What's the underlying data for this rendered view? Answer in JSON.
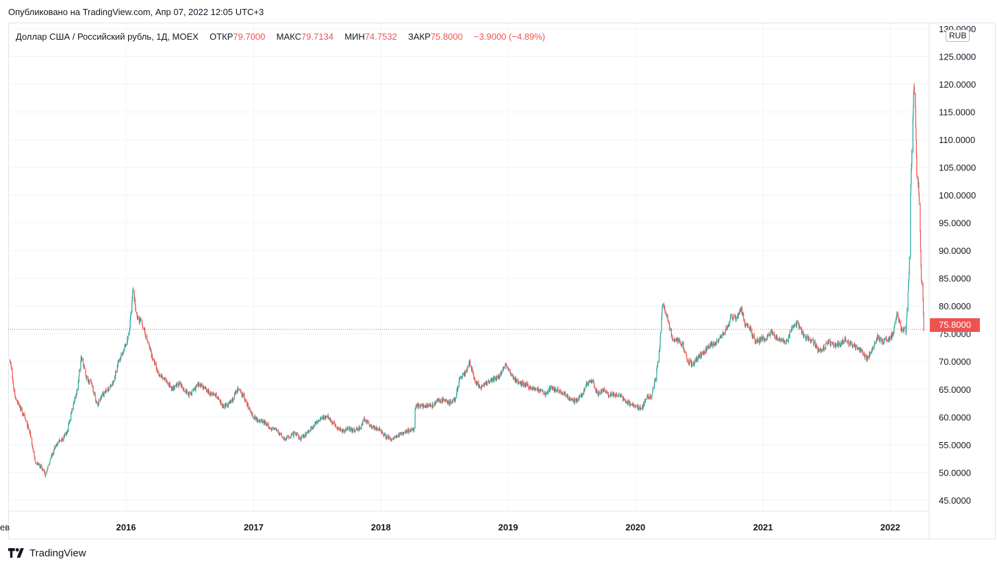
{
  "header": {
    "published_text": "Опубликовано на TradingView.com, Апр 07, 2022 12:05 UTC+3"
  },
  "legend": {
    "symbol": "Доллар США / Российский рубль, 1Д, MOEX",
    "open_label": "ОТКР",
    "open_value": "79.7000",
    "high_label": "МАКС",
    "high_value": "79.7134",
    "low_label": "МИН",
    "low_value": "74.7532",
    "close_label": "ЗАКР",
    "close_value": "75.8000",
    "change_value": "−3.9000 (−4.89%)"
  },
  "price_axis": {
    "currency": "RUB",
    "last_price_label": "75.8000"
  },
  "footer": {
    "brand": "TradingView"
  },
  "colors": {
    "up": "#26a69a",
    "down": "#ef5350",
    "grid": "#f0f3fa",
    "text": "#131722"
  },
  "chart_data": {
    "type": "candlestick",
    "title": "Доллар США / Российский рубль, 1Д, MOEX",
    "y_axis_ticks": [
      "45.0000",
      "50.0000",
      "55.0000",
      "60.0000",
      "65.0000",
      "70.0000",
      "75.0000",
      "80.0000",
      "85.0000",
      "90.0000",
      "95.0000",
      "100.0000",
      "105.0000",
      "110.0000",
      "115.0000",
      "120.0000",
      "125.0000",
      "130.0000"
    ],
    "x_axis_ticks": [
      "ев",
      "2016",
      "2017",
      "2018",
      "2019",
      "2020",
      "2021",
      "2022"
    ],
    "ylim": [
      43,
      131
    ],
    "last_close": 75.8,
    "series": [
      {
        "name": "USD/RUB",
        "points": [
          {
            "date": "2015-02-01",
            "close": 71
          },
          {
            "date": "2015-02-15",
            "close": 64
          },
          {
            "date": "2015-03-01",
            "close": 62
          },
          {
            "date": "2015-03-15",
            "close": 60
          },
          {
            "date": "2015-04-01",
            "close": 57
          },
          {
            "date": "2015-04-15",
            "close": 52
          },
          {
            "date": "2015-05-01",
            "close": 51
          },
          {
            "date": "2015-05-15",
            "close": 49.5
          },
          {
            "date": "2015-06-01",
            "close": 53
          },
          {
            "date": "2015-06-15",
            "close": 55
          },
          {
            "date": "2015-07-01",
            "close": 56
          },
          {
            "date": "2015-07-15",
            "close": 57
          },
          {
            "date": "2015-08-01",
            "close": 62
          },
          {
            "date": "2015-08-15",
            "close": 65
          },
          {
            "date": "2015-08-25",
            "close": 71
          },
          {
            "date": "2015-09-10",
            "close": 67
          },
          {
            "date": "2015-09-25",
            "close": 66
          },
          {
            "date": "2015-10-10",
            "close": 62
          },
          {
            "date": "2015-10-25",
            "close": 64
          },
          {
            "date": "2015-11-10",
            "close": 65
          },
          {
            "date": "2015-11-25",
            "close": 66
          },
          {
            "date": "2015-12-10",
            "close": 70
          },
          {
            "date": "2015-12-25",
            "close": 72
          },
          {
            "date": "2016-01-10",
            "close": 75
          },
          {
            "date": "2016-01-21",
            "close": 83
          },
          {
            "date": "2016-02-01",
            "close": 78
          },
          {
            "date": "2016-02-15",
            "close": 77
          },
          {
            "date": "2016-03-01",
            "close": 74
          },
          {
            "date": "2016-03-15",
            "close": 71
          },
          {
            "date": "2016-04-01",
            "close": 68
          },
          {
            "date": "2016-04-15",
            "close": 67
          },
          {
            "date": "2016-05-01",
            "close": 66
          },
          {
            "date": "2016-05-15",
            "close": 65
          },
          {
            "date": "2016-06-01",
            "close": 66
          },
          {
            "date": "2016-06-15",
            "close": 65
          },
          {
            "date": "2016-07-01",
            "close": 64
          },
          {
            "date": "2016-07-15",
            "close": 65
          },
          {
            "date": "2016-08-01",
            "close": 66
          },
          {
            "date": "2016-08-15",
            "close": 65
          },
          {
            "date": "2016-09-01",
            "close": 64
          },
          {
            "date": "2016-09-15",
            "close": 64
          },
          {
            "date": "2016-10-01",
            "close": 62
          },
          {
            "date": "2016-10-15",
            "close": 62
          },
          {
            "date": "2016-11-01",
            "close": 63
          },
          {
            "date": "2016-11-15",
            "close": 65
          },
          {
            "date": "2016-12-01",
            "close": 64
          },
          {
            "date": "2016-12-15",
            "close": 62
          },
          {
            "date": "2017-01-01",
            "close": 60
          },
          {
            "date": "2017-01-15",
            "close": 59.5
          },
          {
            "date": "2017-02-01",
            "close": 59
          },
          {
            "date": "2017-02-15",
            "close": 58
          },
          {
            "date": "2017-03-01",
            "close": 58
          },
          {
            "date": "2017-03-15",
            "close": 57
          },
          {
            "date": "2017-04-01",
            "close": 56
          },
          {
            "date": "2017-04-15",
            "close": 56.5
          },
          {
            "date": "2017-05-01",
            "close": 57
          },
          {
            "date": "2017-05-15",
            "close": 56
          },
          {
            "date": "2017-06-01",
            "close": 57
          },
          {
            "date": "2017-06-15",
            "close": 58
          },
          {
            "date": "2017-07-01",
            "close": 59
          },
          {
            "date": "2017-07-15",
            "close": 60
          },
          {
            "date": "2017-08-01",
            "close": 60
          },
          {
            "date": "2017-08-15",
            "close": 59
          },
          {
            "date": "2017-09-01",
            "close": 58
          },
          {
            "date": "2017-09-15",
            "close": 57.5
          },
          {
            "date": "2017-10-01",
            "close": 58
          },
          {
            "date": "2017-10-15",
            "close": 57.5
          },
          {
            "date": "2017-11-01",
            "close": 58
          },
          {
            "date": "2017-11-15",
            "close": 59.5
          },
          {
            "date": "2017-12-01",
            "close": 58.5
          },
          {
            "date": "2017-12-15",
            "close": 58
          },
          {
            "date": "2018-01-01",
            "close": 57.5
          },
          {
            "date": "2018-01-15",
            "close": 56.5
          },
          {
            "date": "2018-02-01",
            "close": 56
          },
          {
            "date": "2018-02-15",
            "close": 56.5
          },
          {
            "date": "2018-03-01",
            "close": 57
          },
          {
            "date": "2018-03-15",
            "close": 57.5
          },
          {
            "date": "2018-04-05",
            "close": 57.5
          },
          {
            "date": "2018-04-10",
            "close": 62
          },
          {
            "date": "2018-04-20",
            "close": 62
          },
          {
            "date": "2018-05-01",
            "close": 62
          },
          {
            "date": "2018-05-15",
            "close": 62
          },
          {
            "date": "2018-06-01",
            "close": 62
          },
          {
            "date": "2018-06-15",
            "close": 63
          },
          {
            "date": "2018-07-01",
            "close": 63
          },
          {
            "date": "2018-07-15",
            "close": 62.5
          },
          {
            "date": "2018-08-01",
            "close": 63
          },
          {
            "date": "2018-08-15",
            "close": 67
          },
          {
            "date": "2018-09-01",
            "close": 68
          },
          {
            "date": "2018-09-12",
            "close": 70
          },
          {
            "date": "2018-10-01",
            "close": 66
          },
          {
            "date": "2018-10-15",
            "close": 65.5
          },
          {
            "date": "2018-11-01",
            "close": 66
          },
          {
            "date": "2018-11-15",
            "close": 66.5
          },
          {
            "date": "2018-12-01",
            "close": 67
          },
          {
            "date": "2018-12-27",
            "close": 69.5
          },
          {
            "date": "2019-01-15",
            "close": 67
          },
          {
            "date": "2019-02-01",
            "close": 66
          },
          {
            "date": "2019-02-15",
            "close": 66
          },
          {
            "date": "2019-03-01",
            "close": 65.5
          },
          {
            "date": "2019-03-15",
            "close": 65
          },
          {
            "date": "2019-04-01",
            "close": 65
          },
          {
            "date": "2019-04-15",
            "close": 64
          },
          {
            "date": "2019-05-01",
            "close": 65
          },
          {
            "date": "2019-05-15",
            "close": 65
          },
          {
            "date": "2019-06-01",
            "close": 64.5
          },
          {
            "date": "2019-06-15",
            "close": 64
          },
          {
            "date": "2019-07-01",
            "close": 63
          },
          {
            "date": "2019-07-15",
            "close": 63
          },
          {
            "date": "2019-08-01",
            "close": 64
          },
          {
            "date": "2019-08-15",
            "close": 66
          },
          {
            "date": "2019-09-01",
            "close": 66.5
          },
          {
            "date": "2019-09-15",
            "close": 64
          },
          {
            "date": "2019-10-01",
            "close": 65
          },
          {
            "date": "2019-10-15",
            "close": 64
          },
          {
            "date": "2019-11-01",
            "close": 64
          },
          {
            "date": "2019-11-15",
            "close": 64
          },
          {
            "date": "2019-12-01",
            "close": 63
          },
          {
            "date": "2019-12-15",
            "close": 62.5
          },
          {
            "date": "2020-01-01",
            "close": 62
          },
          {
            "date": "2020-01-20",
            "close": 61.5
          },
          {
            "date": "2020-02-01",
            "close": 63.5
          },
          {
            "date": "2020-02-15",
            "close": 63.5
          },
          {
            "date": "2020-02-28",
            "close": 67
          },
          {
            "date": "2020-03-10",
            "close": 72
          },
          {
            "date": "2020-03-19",
            "close": 80.5
          },
          {
            "date": "2020-04-01",
            "close": 78
          },
          {
            "date": "2020-04-15",
            "close": 74
          },
          {
            "date": "2020-05-01",
            "close": 74
          },
          {
            "date": "2020-05-15",
            "close": 73
          },
          {
            "date": "2020-06-01",
            "close": 70
          },
          {
            "date": "2020-06-15",
            "close": 69.5
          },
          {
            "date": "2020-07-01",
            "close": 71
          },
          {
            "date": "2020-07-15",
            "close": 71.5
          },
          {
            "date": "2020-08-01",
            "close": 73
          },
          {
            "date": "2020-08-15",
            "close": 73
          },
          {
            "date": "2020-09-01",
            "close": 74.5
          },
          {
            "date": "2020-09-15",
            "close": 75.5
          },
          {
            "date": "2020-10-01",
            "close": 78
          },
          {
            "date": "2020-10-15",
            "close": 77.5
          },
          {
            "date": "2020-10-30",
            "close": 79.5
          },
          {
            "date": "2020-11-10",
            "close": 77
          },
          {
            "date": "2020-11-25",
            "close": 76
          },
          {
            "date": "2020-12-10",
            "close": 73.5
          },
          {
            "date": "2020-12-25",
            "close": 74
          },
          {
            "date": "2021-01-10",
            "close": 74
          },
          {
            "date": "2021-01-25",
            "close": 75.5
          },
          {
            "date": "2021-02-10",
            "close": 74
          },
          {
            "date": "2021-02-25",
            "close": 74
          },
          {
            "date": "2021-03-10",
            "close": 73.5
          },
          {
            "date": "2021-03-25",
            "close": 76
          },
          {
            "date": "2021-04-10",
            "close": 77
          },
          {
            "date": "2021-04-25",
            "close": 75
          },
          {
            "date": "2021-05-10",
            "close": 74
          },
          {
            "date": "2021-05-25",
            "close": 73.5
          },
          {
            "date": "2021-06-10",
            "close": 72
          },
          {
            "date": "2021-06-25",
            "close": 72.5
          },
          {
            "date": "2021-07-10",
            "close": 73.5
          },
          {
            "date": "2021-07-25",
            "close": 73
          },
          {
            "date": "2021-08-10",
            "close": 73
          },
          {
            "date": "2021-08-25",
            "close": 74
          },
          {
            "date": "2021-09-10",
            "close": 73
          },
          {
            "date": "2021-09-25",
            "close": 72.5
          },
          {
            "date": "2021-10-10",
            "close": 72
          },
          {
            "date": "2021-10-25",
            "close": 70.5
          },
          {
            "date": "2021-11-10",
            "close": 72
          },
          {
            "date": "2021-11-25",
            "close": 74.5
          },
          {
            "date": "2021-12-10",
            "close": 73.5
          },
          {
            "date": "2021-12-25",
            "close": 74
          },
          {
            "date": "2022-01-10",
            "close": 75
          },
          {
            "date": "2022-01-20",
            "close": 78.5
          },
          {
            "date": "2022-02-01",
            "close": 76
          },
          {
            "date": "2022-02-15",
            "close": 75.5
          },
          {
            "date": "2022-02-24",
            "close": 86
          },
          {
            "date": "2022-02-28",
            "close": 100
          },
          {
            "date": "2022-03-04",
            "close": 108
          },
          {
            "date": "2022-03-10",
            "close": 120
          },
          {
            "date": "2022-03-14",
            "close": 115
          },
          {
            "date": "2022-03-18",
            "close": 104
          },
          {
            "date": "2022-03-23",
            "close": 102
          },
          {
            "date": "2022-03-28",
            "close": 93
          },
          {
            "date": "2022-03-31",
            "close": 84
          },
          {
            "date": "2022-04-04",
            "close": 84
          },
          {
            "date": "2022-04-07",
            "close": 75.8
          }
        ]
      }
    ]
  }
}
